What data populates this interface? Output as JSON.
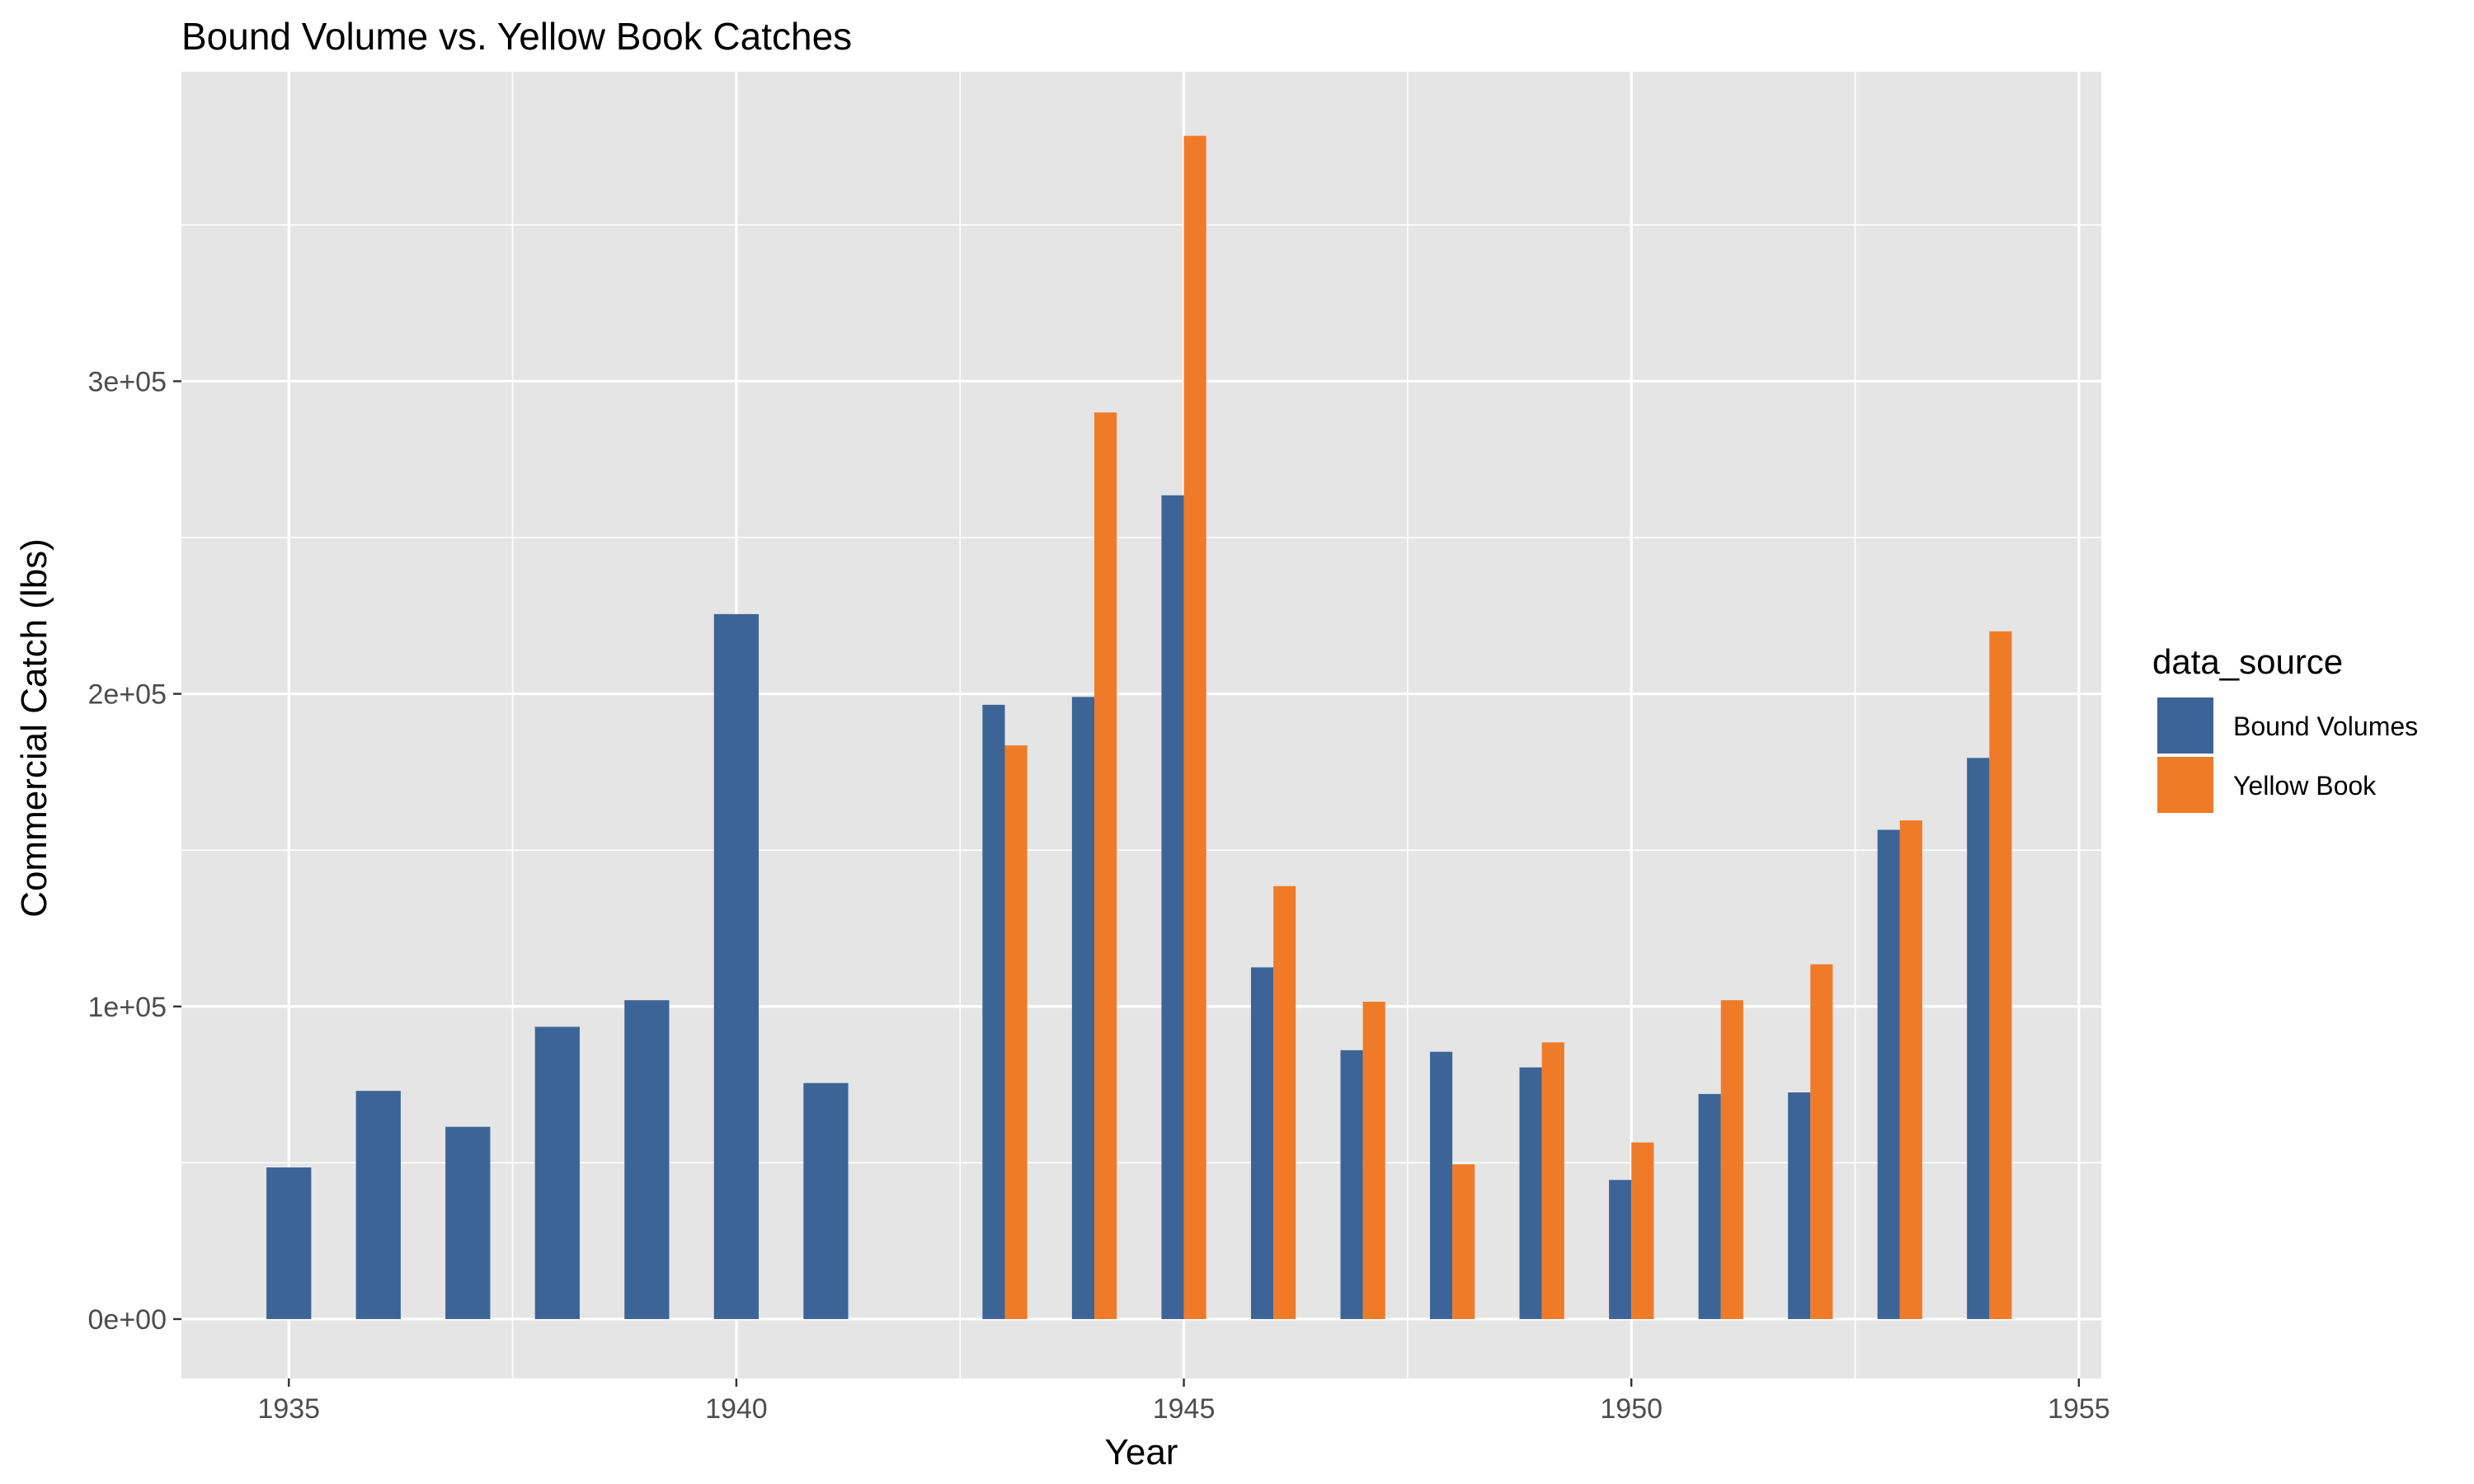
{
  "chart_data": {
    "type": "bar",
    "title": "Bound Volume vs. Yellow Book Catches",
    "xlabel": "Year",
    "ylabel": "Commercial Catch (lbs)",
    "x_ticks": [
      "1935",
      "1940",
      "1945",
      "1950",
      "1955"
    ],
    "x_tick_values": [
      1935,
      1940,
      1945,
      1950,
      1955
    ],
    "y_ticks": [
      "0e+00",
      "1e+05",
      "2e+05",
      "3e+05"
    ],
    "y_tick_values": [
      0,
      100000,
      200000,
      300000
    ],
    "xlim": [
      1933.8,
      1955.25
    ],
    "ylim": [
      -19000,
      399000
    ],
    "grid": true,
    "legend": {
      "title": "data_source",
      "position": "right"
    },
    "series": [
      {
        "name": "Bound Volumes",
        "color": "#3d6496",
        "points": [
          {
            "x": 1935,
            "y": 48500
          },
          {
            "x": 1936,
            "y": 73000
          },
          {
            "x": 1937,
            "y": 61500
          },
          {
            "x": 1938,
            "y": 93500
          },
          {
            "x": 1939,
            "y": 102000
          },
          {
            "x": 1940,
            "y": 225500
          },
          {
            "x": 1941,
            "y": 75500
          },
          {
            "x": 1943,
            "y": 196500
          },
          {
            "x": 1944,
            "y": 199000
          },
          {
            "x": 1945,
            "y": 263500
          },
          {
            "x": 1946,
            "y": 112500
          },
          {
            "x": 1947,
            "y": 86000
          },
          {
            "x": 1948,
            "y": 85500
          },
          {
            "x": 1949,
            "y": 80500
          },
          {
            "x": 1950,
            "y": 44500
          },
          {
            "x": 1951,
            "y": 72000
          },
          {
            "x": 1952,
            "y": 72500
          },
          {
            "x": 1953,
            "y": 156500
          },
          {
            "x": 1954,
            "y": 179500
          }
        ]
      },
      {
        "name": "Yellow Book",
        "color": "#ef7b28",
        "points": [
          {
            "x": 1943,
            "y": 183500
          },
          {
            "x": 1944,
            "y": 290000
          },
          {
            "x": 1945,
            "y": 378500
          },
          {
            "x": 1946,
            "y": 138500
          },
          {
            "x": 1947,
            "y": 101500
          },
          {
            "x": 1948,
            "y": 49500
          },
          {
            "x": 1949,
            "y": 88500
          },
          {
            "x": 1950,
            "y": 56500
          },
          {
            "x": 1951,
            "y": 102000
          },
          {
            "x": 1952,
            "y": 113500
          },
          {
            "x": 1953,
            "y": 159500
          },
          {
            "x": 1954,
            "y": 220000
          }
        ]
      }
    ],
    "colors": {
      "panel_background": "#e5e5e5",
      "gridline": "#ffffff"
    }
  }
}
